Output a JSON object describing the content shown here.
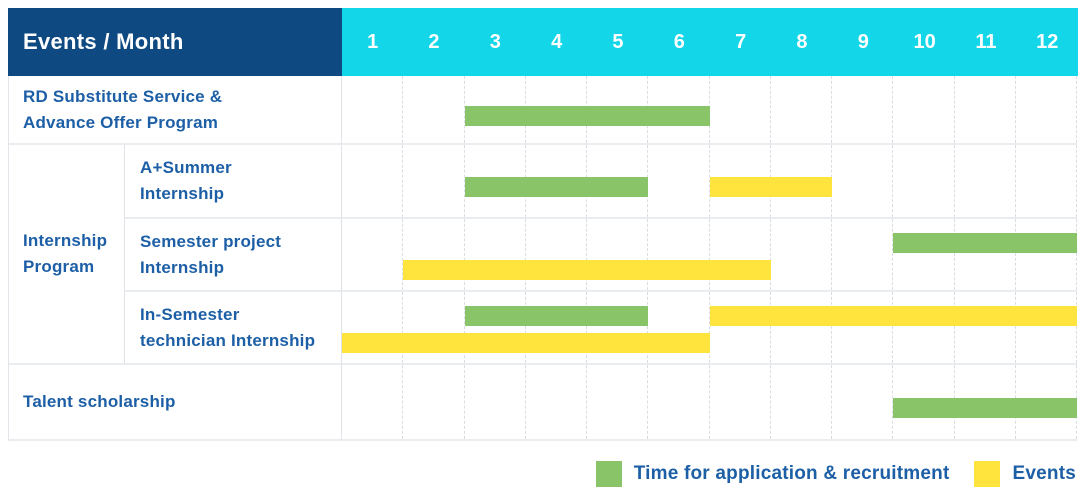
{
  "header": {
    "title": "Events / Month",
    "months": [
      "1",
      "2",
      "3",
      "4",
      "5",
      "6",
      "7",
      "8",
      "9",
      "10",
      "11",
      "12"
    ]
  },
  "rows": {
    "rd": {
      "lines": [
        "RD Substitute Service &",
        "Advance Offer Program"
      ]
    },
    "group": {
      "lines": [
        "Internship",
        "Program"
      ]
    },
    "aplus": {
      "lines": [
        "A+Summer",
        "Internship"
      ]
    },
    "semester": {
      "lines": [
        "Semester project",
        "Internship"
      ]
    },
    "insemester": {
      "lines": [
        "In-Semester",
        "technician Internship"
      ]
    },
    "talent": {
      "label": "Talent scholarship"
    }
  },
  "legend": {
    "application": "Time for application & recruitment",
    "events": "Events"
  },
  "colors": {
    "header_navy": "#0e4a81",
    "header_cyan": "#13d6e8",
    "application_green": "#8ac468",
    "event_yellow": "#ffe43e",
    "label_blue": "#1d5fa6"
  },
  "chart_data": {
    "type": "bar",
    "subtype": "gantt",
    "title": "Events / Month",
    "x_unit": "month",
    "x_ticks": [
      1,
      2,
      3,
      4,
      5,
      6,
      7,
      8,
      9,
      10,
      11,
      12
    ],
    "xlim": [
      1,
      12
    ],
    "grid": "dashed-vertical-month-lines",
    "legend_position": "bottom-right",
    "bar_kinds": {
      "application": {
        "label": "Time for application & recruitment",
        "color": "#8ac468"
      },
      "event": {
        "label": "Events",
        "color": "#ffe43e"
      }
    },
    "rows": [
      {
        "label": "RD Substitute Service & Advance Offer Program",
        "group": null,
        "bars": [
          {
            "kind": "application",
            "start_month": 3,
            "end_month": 6,
            "lane": "single"
          }
        ]
      },
      {
        "label": "A+Summer Internship",
        "group": "Internship Program",
        "bars": [
          {
            "kind": "application",
            "start_month": 3,
            "end_month": 5,
            "lane": "single"
          },
          {
            "kind": "event",
            "start_month": 7,
            "end_month": 8,
            "lane": "single"
          }
        ]
      },
      {
        "label": "Semester project Internship",
        "group": "Internship Program",
        "bars": [
          {
            "kind": "application",
            "start_month": 10,
            "end_month": 12,
            "lane": "top"
          },
          {
            "kind": "event",
            "start_month": 2,
            "end_month": 7,
            "lane": "bottom"
          }
        ]
      },
      {
        "label": "In-Semester technician Internship",
        "group": "Internship Program",
        "bars": [
          {
            "kind": "application",
            "start_month": 3,
            "end_month": 5,
            "lane": "top"
          },
          {
            "kind": "event",
            "start_month": 7,
            "end_month": 12,
            "lane": "top"
          },
          {
            "kind": "event",
            "start_month": 1,
            "end_month": 6,
            "lane": "bottom"
          }
        ]
      },
      {
        "label": "Talent scholarship",
        "group": null,
        "bars": [
          {
            "kind": "application",
            "start_month": 10,
            "end_month": 12,
            "lane": "single"
          }
        ]
      }
    ]
  }
}
